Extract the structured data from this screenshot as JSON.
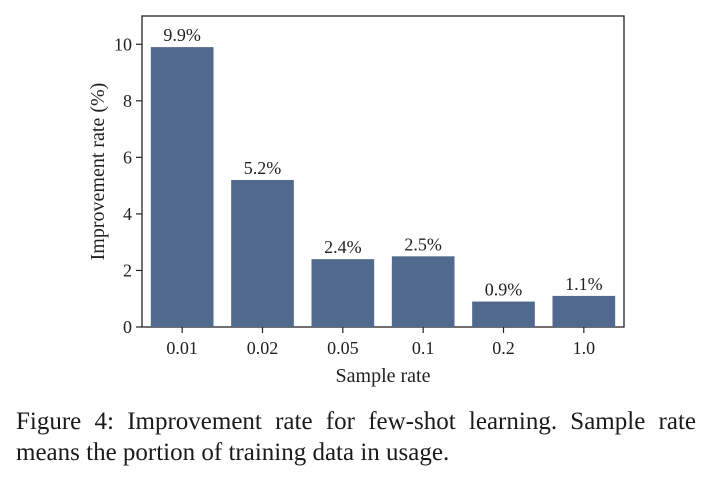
{
  "chart_data": {
    "type": "bar",
    "categories": [
      "0.01",
      "0.02",
      "0.05",
      "0.1",
      "0.2",
      "1.0"
    ],
    "values": [
      9.9,
      5.2,
      2.4,
      2.5,
      0.9,
      1.1
    ],
    "data_labels": [
      "9.9%",
      "5.2%",
      "2.4%",
      "2.5%",
      "0.9%",
      "1.1%"
    ],
    "xlabel": "Sample rate",
    "ylabel": "Improvement rate (%)",
    "ylim": [
      0,
      11
    ],
    "yticks": [
      0,
      2,
      4,
      6,
      8,
      10
    ],
    "ytick_labels": [
      "0",
      "2",
      "4",
      "6",
      "8",
      "10"
    ],
    "grid": false,
    "bar_color": "#51698c"
  },
  "caption": {
    "text": "Figure 4: Improvement rate for few-shot learning. Sample rate means the portion of training data in usage."
  }
}
